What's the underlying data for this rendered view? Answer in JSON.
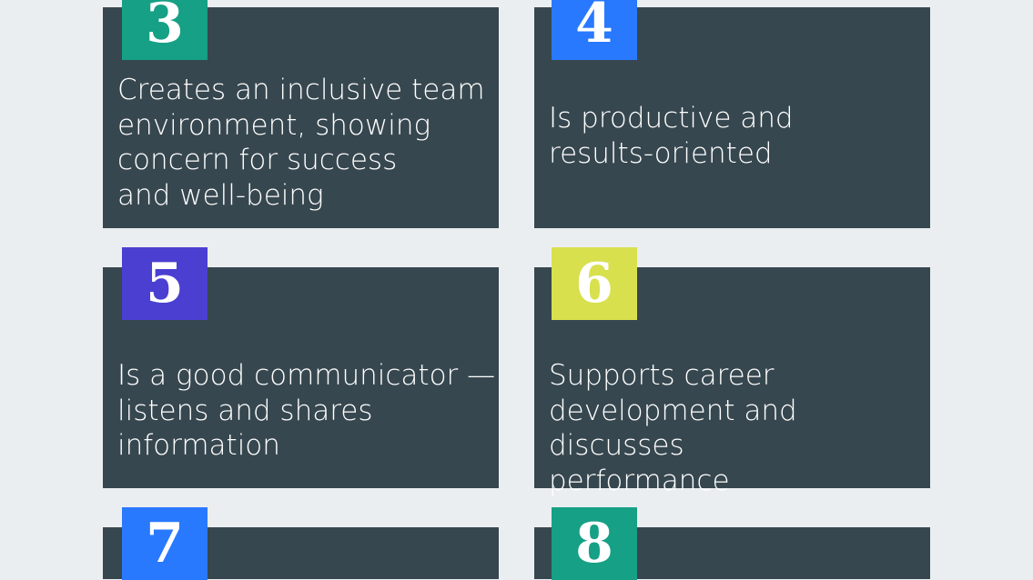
{
  "background_color": "#ebeef0",
  "card_color": "#37474f",
  "cards": [
    {
      "number": "3",
      "badge_color": "#16a085",
      "text": "Creates an inclusive team\nenvironment, showing\nconcern for success\nand well-being"
    },
    {
      "number": "4",
      "badge_color": "#2979ff",
      "text": "Is productive and\nresults-oriented"
    },
    {
      "number": "5",
      "badge_color": "#4a3fd1",
      "text": "Is a good communicator —\nlistens and shares\ninformation"
    },
    {
      "number": "6",
      "badge_color": "#d8e04d",
      "text": "Supports career\ndevelopment and discusses\nperformance"
    },
    {
      "number": "7",
      "badge_color": "#2979ff",
      "text": ""
    },
    {
      "number": "8",
      "badge_color": "#16a085",
      "text": ""
    }
  ]
}
